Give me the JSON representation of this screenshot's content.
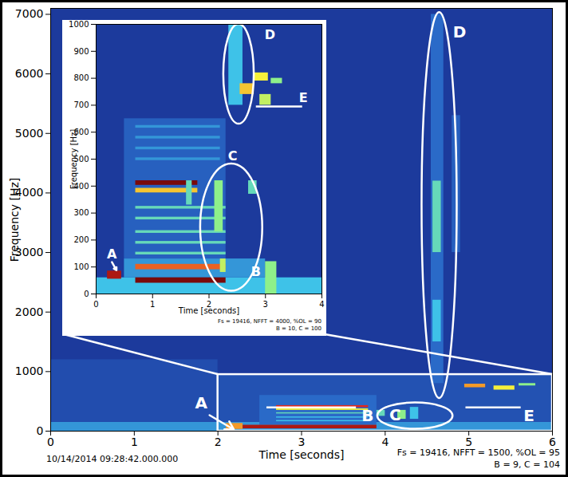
{
  "chart_data": [
    {
      "type": "heatmap",
      "xlabel": "Time [seconds]",
      "ylabel": "Frequency [Hz]",
      "xlim": [
        0,
        6
      ],
      "xticks": [
        0,
        1,
        2,
        3,
        4,
        5,
        6
      ],
      "ylim": [
        0,
        7100
      ],
      "yticks": [
        0,
        1000,
        2000,
        3000,
        4000,
        5000,
        6000,
        7000
      ],
      "zlim": [
        0,
        8
      ],
      "cells": [
        [
          0,
          6,
          0,
          7100,
          1
        ],
        [
          0,
          6,
          0,
          150,
          2.5
        ],
        [
          0,
          2,
          150,
          1200,
          1.4
        ],
        [
          2,
          6,
          150,
          950,
          1.5
        ],
        [
          2.5,
          3.9,
          100,
          600,
          2
        ],
        [
          2.1,
          2.3,
          30,
          130,
          6
        ],
        [
          2.3,
          3.9,
          40,
          100,
          7.5
        ],
        [
          2.7,
          3.8,
          160,
          180,
          3
        ],
        [
          2.7,
          3.8,
          220,
          240,
          3
        ],
        [
          2.7,
          3.8,
          290,
          310,
          3.5
        ],
        [
          2.7,
          3.8,
          350,
          375,
          5
        ],
        [
          2.7,
          3.8,
          395,
          430,
          7
        ],
        [
          3.9,
          4.0,
          250,
          350,
          3.5
        ],
        [
          4.15,
          4.25,
          200,
          350,
          4
        ],
        [
          4.3,
          4.4,
          200,
          400,
          3
        ],
        [
          4.55,
          4.7,
          800,
          7000,
          2
        ],
        [
          4.57,
          4.67,
          1500,
          2200,
          3
        ],
        [
          4.57,
          4.67,
          3000,
          4200,
          3.5
        ],
        [
          4.8,
          4.9,
          3000,
          5300,
          1.8
        ],
        [
          4.95,
          5.2,
          730,
          790,
          6
        ],
        [
          5.3,
          5.55,
          690,
          760,
          5
        ],
        [
          5.6,
          5.8,
          760,
          800,
          4
        ]
      ],
      "zoom": {
        "x1": 2,
        "x2": 6,
        "y1": 0,
        "y2": 950
      },
      "annotations": [
        {
          "text": "A",
          "x": 1.8,
          "y": 470
        },
        {
          "text": "B",
          "x": 3.79,
          "y": 254
        },
        {
          "text": "C",
          "x": 4.12,
          "y": 270
        },
        {
          "text": "D",
          "x": 4.89,
          "y": 6693
        },
        {
          "text": "E",
          "x": 5.72,
          "y": 254
        }
      ],
      "arrows": [
        {
          "x1": 1.9,
          "y1": 268,
          "x2": 2.19,
          "y2": 27
        }
      ],
      "ellipses": [
        {
          "cx": 4.36,
          "cy": 254,
          "rx": 0.45,
          "ry": 221
        },
        {
          "cx": 4.65,
          "cy": 3788,
          "rx": 0.21,
          "ry": 3240
        }
      ],
      "underlines": [
        {
          "x1": 2.58,
          "x2": 3.65,
          "y": 400
        },
        {
          "x1": 4.96,
          "x2": 5.62,
          "y": 400
        }
      ],
      "timestamp": "10/14/2014 09:28:42.000.000",
      "notes": [
        "Fs = 19416, NFFT = 1500, %OL = 95",
        "B = 9, C = 104"
      ]
    },
    {
      "type": "heatmap",
      "xlabel": "Time [seconds]",
      "ylabel": "Frequency [Hz]",
      "xlim": [
        0,
        4
      ],
      "xticks": [
        0,
        1,
        2,
        3,
        4
      ],
      "ylim": [
        0,
        1000
      ],
      "yticks": [
        0,
        100,
        200,
        300,
        400,
        500,
        600,
        700,
        800,
        900,
        1000
      ],
      "zlim": [
        0,
        8
      ],
      "cells": [
        [
          0,
          4,
          0,
          1000,
          1
        ],
        [
          0,
          4,
          0,
          60,
          3
        ],
        [
          0.5,
          3.0,
          60,
          130,
          2.5
        ],
        [
          0.5,
          2.3,
          130,
          650,
          1.8
        ],
        [
          0.2,
          0.45,
          55,
          85,
          7.5
        ],
        [
          0.7,
          2.3,
          40,
          60,
          8
        ],
        [
          0.7,
          2.3,
          90,
          110,
          6.5
        ],
        [
          0.7,
          2.3,
          145,
          155,
          3.5
        ],
        [
          0.7,
          2.3,
          185,
          195,
          3.5
        ],
        [
          0.7,
          2.3,
          225,
          235,
          3.5
        ],
        [
          0.7,
          2.3,
          275,
          285,
          3.5
        ],
        [
          0.7,
          2.3,
          315,
          325,
          3.5
        ],
        [
          0.7,
          1.8,
          375,
          392,
          5.5
        ],
        [
          0.7,
          1.8,
          403,
          420,
          8
        ],
        [
          0.7,
          2.2,
          495,
          505,
          2.5
        ],
        [
          0.7,
          2.2,
          535,
          545,
          2.5
        ],
        [
          0.7,
          2.2,
          575,
          585,
          2.5
        ],
        [
          0.7,
          2.2,
          615,
          625,
          2.5
        ],
        [
          1.6,
          1.7,
          330,
          420,
          3.5
        ],
        [
          2.1,
          2.25,
          230,
          420,
          4
        ],
        [
          2.7,
          2.85,
          370,
          420,
          3.5
        ],
        [
          2.2,
          2.3,
          80,
          130,
          4.5
        ],
        [
          3.0,
          3.2,
          0,
          120,
          4
        ],
        [
          2.35,
          2.6,
          700,
          1000,
          3
        ],
        [
          2.55,
          2.8,
          740,
          780,
          5.5
        ],
        [
          2.8,
          3.05,
          790,
          820,
          5
        ],
        [
          2.9,
          3.1,
          700,
          740,
          4.5
        ],
        [
          3.1,
          3.3,
          780,
          800,
          4
        ]
      ],
      "annotations": [
        {
          "text": "A",
          "x": 0.28,
          "y": 148
        },
        {
          "text": "B",
          "x": 2.83,
          "y": 83
        },
        {
          "text": "C",
          "x": 2.42,
          "y": 510
        },
        {
          "text": "D",
          "x": 3.08,
          "y": 960
        },
        {
          "text": "E",
          "x": 3.67,
          "y": 728
        }
      ],
      "arrows": [
        {
          "x1": 0.28,
          "y1": 118,
          "x2": 0.36,
          "y2": 88
        }
      ],
      "ellipses": [
        {
          "cx": 2.4,
          "cy": 246,
          "rx": 0.55,
          "ry": 236
        },
        {
          "cx": 2.53,
          "cy": 815,
          "rx": 0.27,
          "ry": 185
        }
      ],
      "underlines": [
        {
          "x1": 2.83,
          "x2": 3.65,
          "y": 695
        }
      ],
      "notes": [
        "Fs = 19416, NFFT = 4000, %OL = 90",
        "B = 10, C = 100"
      ]
    }
  ]
}
